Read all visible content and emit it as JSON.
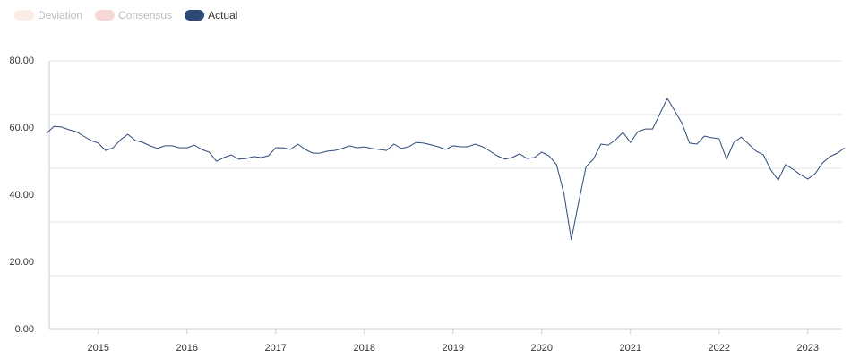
{
  "chart_data": {
    "type": "line",
    "legend": [
      {
        "name": "Deviation",
        "color": "#fbece6",
        "hidden": true
      },
      {
        "name": "Consensus",
        "color": "#f6d9d6",
        "hidden": true
      },
      {
        "name": "Actual",
        "color": "#2d4a77",
        "hidden": false
      }
    ],
    "categories": [
      null,
      null,
      null,
      null,
      null,
      null,
      null,
      "2015",
      null,
      null,
      null,
      null,
      null,
      null,
      null,
      null,
      null,
      null,
      null,
      "2016",
      null,
      null,
      null,
      null,
      null,
      null,
      null,
      null,
      null,
      null,
      null,
      "2017",
      null,
      null,
      null,
      null,
      null,
      null,
      null,
      null,
      null,
      null,
      null,
      "2018",
      null,
      null,
      null,
      null,
      null,
      null,
      null,
      null,
      null,
      null,
      null,
      "2019",
      null,
      null,
      null,
      null,
      null,
      null,
      null,
      null,
      null,
      null,
      null,
      "2020",
      null,
      null,
      null,
      null,
      null,
      null,
      null,
      null,
      null,
      null,
      null,
      "2021",
      null,
      null,
      null,
      null,
      null,
      null,
      null,
      null,
      null,
      null,
      null,
      "2022",
      null,
      null,
      null,
      null,
      null,
      null,
      null,
      null,
      null,
      null,
      null,
      "2023",
      null,
      null,
      null,
      null,
      null
    ],
    "series": [
      {
        "name": "Actual",
        "color": "#2d4a77",
        "values": [
          58.4,
          60.5,
          60.3,
          59.5,
          58.9,
          57.6,
          56.3,
          55.5,
          53.3,
          54.1,
          56.5,
          58.1,
          56.3,
          55.7,
          54.7,
          53.9,
          54.7,
          54.7,
          54.1,
          54.1,
          54.9,
          53.6,
          52.8,
          50.1,
          51.2,
          52.0,
          50.7,
          50.9,
          51.5,
          51.2,
          51.7,
          54.1,
          54.1,
          53.6,
          55.2,
          53.6,
          52.5,
          52.5,
          53.1,
          53.3,
          53.9,
          54.7,
          54.1,
          54.4,
          53.9,
          53.6,
          53.3,
          55.2,
          53.9,
          54.4,
          55.7,
          55.5,
          55.0,
          54.4,
          53.6,
          54.7,
          54.4,
          54.4,
          55.2,
          54.4,
          53.1,
          51.7,
          50.7,
          51.2,
          52.3,
          50.9,
          51.2,
          52.8,
          51.7,
          49.1,
          40.5,
          26.7,
          37.9,
          48.5,
          50.7,
          55.2,
          54.9,
          56.5,
          58.7,
          55.7,
          58.9,
          59.7,
          59.7,
          64.3,
          68.8,
          65.1,
          61.3,
          55.5,
          55.2,
          57.6,
          57.1,
          56.8,
          50.7,
          55.7,
          57.3,
          55.2,
          53.1,
          52.0,
          47.5,
          44.5,
          49.1,
          47.7,
          46.1,
          44.8,
          46.4,
          49.6,
          51.5,
          52.5,
          54.1
        ]
      }
    ],
    "ylim": [
      0,
      80
    ],
    "yticks": [
      {
        "value": 0,
        "label": "0.00"
      },
      {
        "value": 20,
        "label": "20.00"
      },
      {
        "value": 40,
        "label": "40.00"
      },
      {
        "value": 60,
        "label": "60.00"
      },
      {
        "value": 80,
        "label": "80.00"
      }
    ],
    "grid_lines": [
      0,
      16,
      32,
      48,
      64,
      80
    ],
    "grid": true
  }
}
